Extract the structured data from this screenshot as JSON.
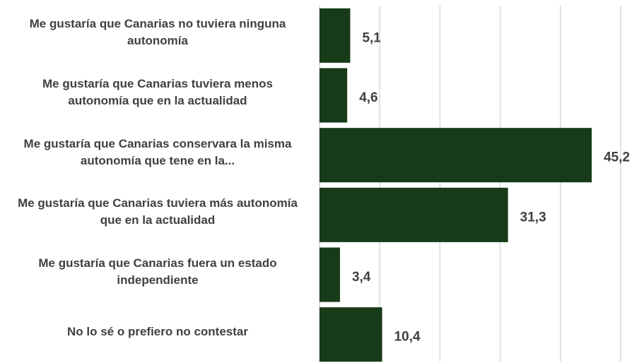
{
  "chart_data": {
    "type": "bar",
    "orientation": "horizontal",
    "categories": [
      "Me gustaría que Canarias no tuviera ninguna autonomía",
      "Me gustaría que Canarias tuviera menos autonomía que en la actualidad",
      "Me gustaría que Canarias conservara la misma autonomía que tene en la...",
      "Me gustaría que Canarias tuviera más autonomía que en la actualidad",
      "Me gustaría que Canarias fuera un estado independiente",
      "No lo sé o prefiero no contestar"
    ],
    "values": [
      5.1,
      4.6,
      45.2,
      31.3,
      3.4,
      10.4
    ],
    "value_labels": [
      "5,1",
      "4,6",
      "45,2",
      "31,3",
      "3,4",
      "10,4"
    ],
    "color": "#173b18",
    "xlim": [
      0,
      50
    ],
    "xticks": [
      0,
      10,
      20,
      30,
      40,
      50
    ],
    "grid": true
  }
}
